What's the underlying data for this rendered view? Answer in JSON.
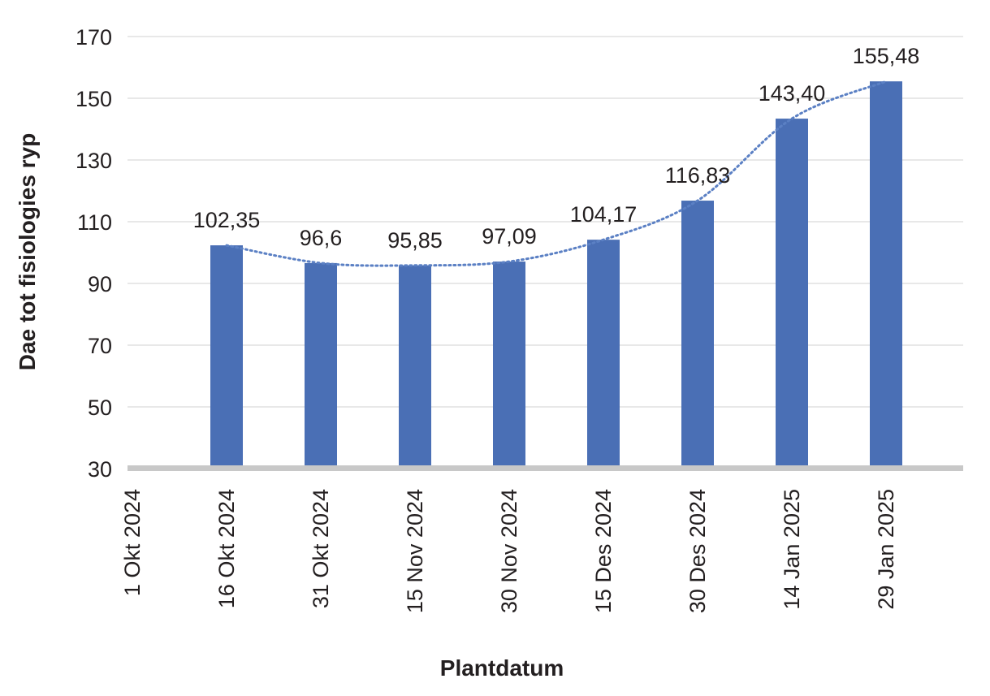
{
  "chart_data": {
    "type": "bar",
    "title": "",
    "xlabel": "Plantdatum",
    "ylabel": "Dae tot fisiologies ryp",
    "ylim": [
      30,
      170
    ],
    "yticks": [
      "30",
      "50",
      "70",
      "90",
      "110",
      "130",
      "150",
      "170"
    ],
    "grid": true,
    "legend": "none",
    "x_tick_labels": [
      "1 Okt 2024",
      "16 Okt 2024",
      "31 Okt 2024",
      "15 Nov 2024",
      "30 Nov 2024",
      "15 Des 2024",
      "30 Des 2024",
      "14 Jan 2025",
      "29 Jan 2025"
    ],
    "x_tick_dates": [
      "2024-10-01",
      "2024-10-16",
      "2024-10-31",
      "2024-11-15",
      "2024-11-30",
      "2024-12-15",
      "2024-12-30",
      "2025-01-14",
      "2025-01-29"
    ],
    "bars": [
      {
        "date": "2024-10-16",
        "value": 102.35,
        "label": "102,35"
      },
      {
        "date": "2024-10-31",
        "value": 96.6,
        "label": "96,6"
      },
      {
        "date": "2024-11-15",
        "value": 95.85,
        "label": "95,85"
      },
      {
        "date": "2024-11-30",
        "value": 97.09,
        "label": "97,09"
      },
      {
        "date": "2024-12-15",
        "value": 104.17,
        "label": "104,17"
      },
      {
        "date": "2024-12-30",
        "value": 116.83,
        "label": "116,83"
      },
      {
        "date": "2025-01-14",
        "value": 143.4,
        "label": "143,40"
      },
      {
        "date": "2025-01-29",
        "value": 155.48,
        "label": "155,48"
      }
    ],
    "trendline": {
      "style": "dotted",
      "type": "polynomial"
    },
    "colors": {
      "bar": "#4a6fb5",
      "trend": "#5b80c4",
      "grid": "#d9d9d9",
      "axis": "#c8c8c8"
    }
  }
}
